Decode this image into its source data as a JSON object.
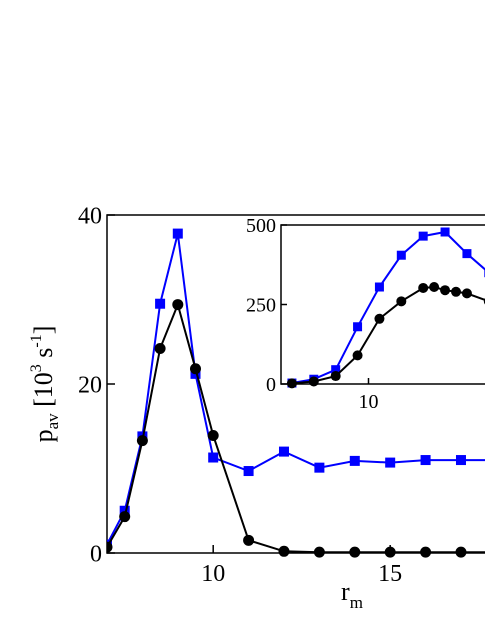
{
  "chart_data": [
    {
      "type": "line",
      "xlabel_main": "r",
      "xlabel_sub": "m",
      "ylabel_main": "p",
      "ylabel_sub": "av",
      "ylabel_unit_open": "[10",
      "ylabel_unit_exp": "3",
      "ylabel_unit_mid": "s",
      "ylabel_unit_exp2": "-1",
      "ylabel_unit_close": "]",
      "xlim": [
        7,
        18.3
      ],
      "ylim": [
        0,
        40
      ],
      "xticks": [
        10,
        15
      ],
      "yticks": [
        0,
        20,
        40
      ],
      "grid": false,
      "series": [
        {
          "color": "#0000ff",
          "marker": "square",
          "x": [
            7,
            7.5,
            8,
            8.5,
            9,
            9.5,
            10,
            11,
            12,
            13,
            14,
            15,
            16,
            17,
            18.3
          ],
          "y": [
            1.0,
            5.0,
            13.8,
            29.5,
            37.8,
            21.2,
            11.3,
            9.7,
            12.0,
            10.1,
            10.9,
            10.7,
            11.0,
            11.0,
            11.0
          ]
        },
        {
          "color": "#000000",
          "marker": "circle",
          "x": [
            7,
            7.5,
            8,
            8.5,
            9,
            9.5,
            10,
            11,
            12,
            13,
            14,
            15,
            16,
            17,
            18.3
          ],
          "y": [
            0.7,
            4.3,
            13.3,
            24.2,
            29.4,
            21.8,
            13.9,
            1.5,
            0.2,
            0.1,
            0.1,
            0.1,
            0.1,
            0.1,
            0.1
          ]
        }
      ]
    },
    {
      "type": "line",
      "inset": true,
      "xlim": [
        6,
        15.6
      ],
      "ylim": [
        0,
        500
      ],
      "xticks": [
        10
      ],
      "xtick_partial_label": "1",
      "yticks": [
        0,
        250,
        500
      ],
      "grid": false,
      "series": [
        {
          "color": "#0000ff",
          "marker": "square",
          "x": [
            6.5,
            7.5,
            8.5,
            9.5,
            10.5,
            11.5,
            12.5,
            13.5,
            14.5,
            15.5
          ],
          "y": [
            3,
            15,
            45,
            180,
            305,
            405,
            465,
            478,
            410,
            350
          ]
        },
        {
          "color": "#000000",
          "marker": "circle",
          "x": [
            6.5,
            7.5,
            8.5,
            9.5,
            10.5,
            11.5,
            12.5,
            13,
            13.5,
            14,
            14.5,
            15.5
          ],
          "y": [
            2,
            8,
            25,
            90,
            205,
            260,
            302,
            305,
            295,
            290,
            285,
            260
          ]
        }
      ]
    }
  ]
}
